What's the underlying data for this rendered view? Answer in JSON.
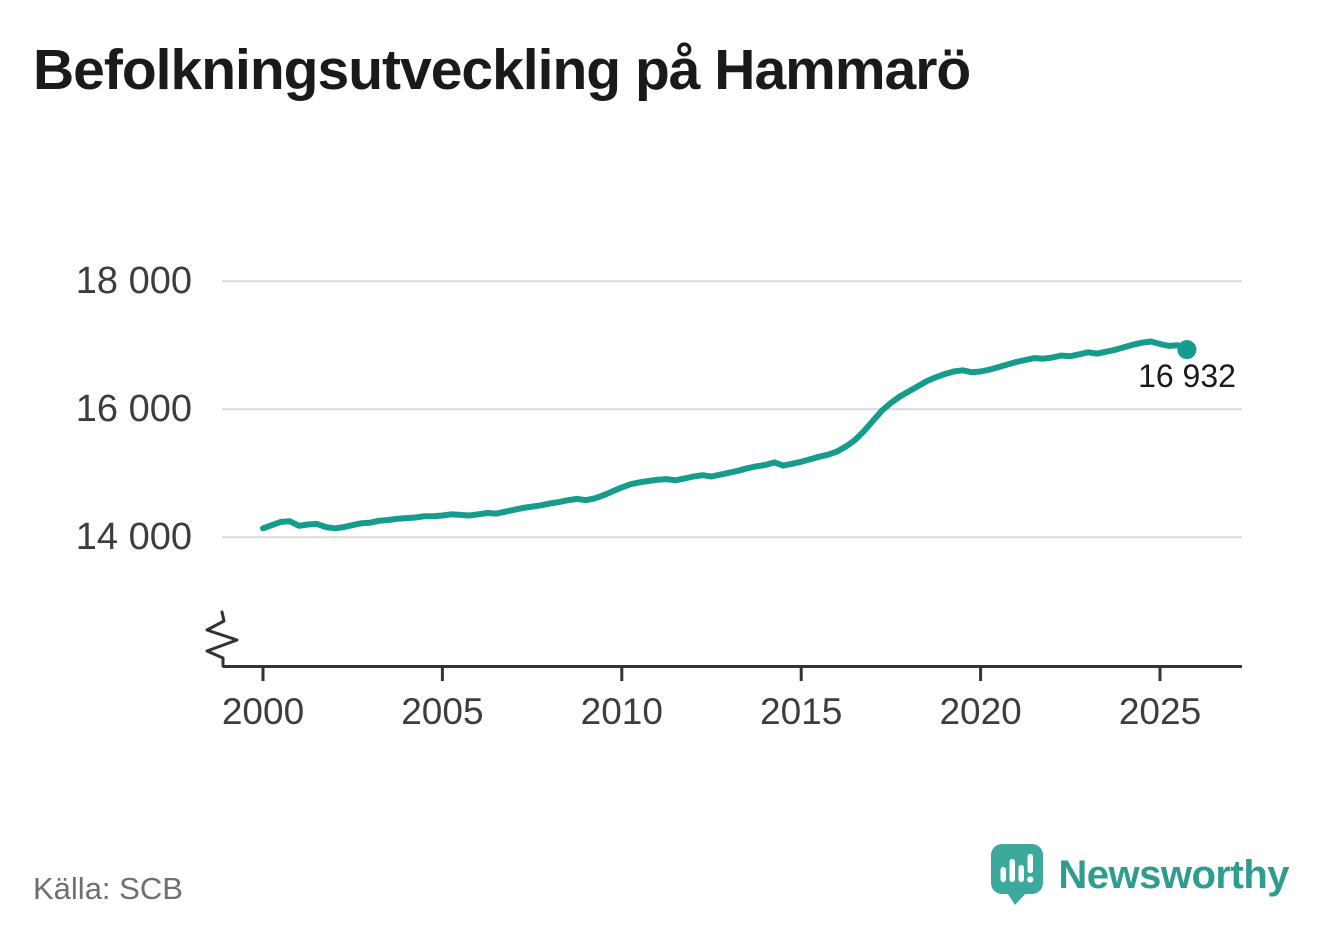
{
  "title": "Befolkningsutveckling på Hammarö",
  "source": "Källa: SCB",
  "branding": {
    "name": "Newsworthy",
    "icon": "bar-chart-speech-bubble"
  },
  "annotation": {
    "last_value_label": "16 932"
  },
  "colors": {
    "line": "#169c8d",
    "marker": "#169c8d",
    "grid": "#d9d9d9",
    "axis": "#333333",
    "title_text": "#1a1a1a",
    "tick_text": "#3d3d3d",
    "source_text": "#6f6f6f",
    "brand_teal": "#2e9d90",
    "brand_bubble": "#3ba99b",
    "background": "#ffffff"
  },
  "chart_data": {
    "type": "line",
    "title": "Befolkningsutveckling på Hammarö",
    "series_name": "Folkmängd Hammarö",
    "xlabel": "",
    "ylabel": "",
    "x_ticks": [
      2000,
      2005,
      2010,
      2015,
      2020,
      2025
    ],
    "x_tick_labels": [
      "2000",
      "2005",
      "2010",
      "2015",
      "2020",
      "2025"
    ],
    "y_ticks": [
      14000,
      16000,
      18000
    ],
    "y_tick_labels": [
      "14 000",
      "16 000",
      "18 000"
    ],
    "xlim": [
      2000,
      2027.3
    ],
    "ylim": [
      14000,
      18000
    ],
    "y_axis_break": true,
    "grid": "horizontal",
    "legend": "none",
    "last_point": {
      "x": 2025.75,
      "y": 16932,
      "label": "16 932"
    },
    "x": [
      2000.0,
      2000.25,
      2000.5,
      2000.75,
      2001.0,
      2001.25,
      2001.5,
      2001.75,
      2002.0,
      2002.25,
      2002.5,
      2002.75,
      2003.0,
      2003.25,
      2003.5,
      2003.75,
      2004.0,
      2004.25,
      2004.5,
      2004.75,
      2005.0,
      2005.25,
      2005.5,
      2005.75,
      2006.0,
      2006.25,
      2006.5,
      2006.75,
      2007.0,
      2007.25,
      2007.5,
      2007.75,
      2008.0,
      2008.25,
      2008.5,
      2008.75,
      2009.0,
      2009.25,
      2009.5,
      2009.75,
      2010.0,
      2010.25,
      2010.5,
      2010.75,
      2011.0,
      2011.25,
      2011.5,
      2011.75,
      2012.0,
      2012.25,
      2012.5,
      2012.75,
      2013.0,
      2013.25,
      2013.5,
      2013.75,
      2014.0,
      2014.25,
      2014.5,
      2014.75,
      2015.0,
      2015.25,
      2015.5,
      2015.75,
      2016.0,
      2016.25,
      2016.5,
      2016.75,
      2017.0,
      2017.25,
      2017.5,
      2017.75,
      2018.0,
      2018.25,
      2018.5,
      2018.75,
      2019.0,
      2019.25,
      2019.5,
      2019.75,
      2020.0,
      2020.25,
      2020.5,
      2020.75,
      2021.0,
      2021.25,
      2021.5,
      2021.75,
      2022.0,
      2022.25,
      2022.5,
      2022.75,
      2023.0,
      2023.25,
      2023.5,
      2023.75,
      2024.0,
      2024.25,
      2024.5,
      2024.75,
      2025.0,
      2025.25,
      2025.5,
      2025.75
    ],
    "y": [
      14140,
      14190,
      14240,
      14250,
      14180,
      14200,
      14210,
      14160,
      14140,
      14160,
      14190,
      14220,
      14230,
      14260,
      14270,
      14290,
      14300,
      14310,
      14330,
      14330,
      14340,
      14360,
      14350,
      14340,
      14360,
      14380,
      14370,
      14400,
      14430,
      14460,
      14480,
      14500,
      14530,
      14550,
      14580,
      14600,
      14580,
      14610,
      14660,
      14720,
      14780,
      14830,
      14860,
      14880,
      14900,
      14910,
      14890,
      14920,
      14950,
      14970,
      14950,
      14980,
      15010,
      15040,
      15080,
      15110,
      15130,
      15170,
      15120,
      15150,
      15180,
      15220,
      15260,
      15290,
      15340,
      15420,
      15520,
      15660,
      15820,
      15980,
      16100,
      16200,
      16280,
      16360,
      16440,
      16500,
      16550,
      16590,
      16610,
      16580,
      16590,
      16620,
      16660,
      16700,
      16740,
      16770,
      16800,
      16790,
      16810,
      16840,
      16830,
      16860,
      16890,
      16870,
      16900,
      16930,
      16970,
      17010,
      17040,
      17060,
      17020,
      16990,
      17000,
      16932
    ]
  }
}
